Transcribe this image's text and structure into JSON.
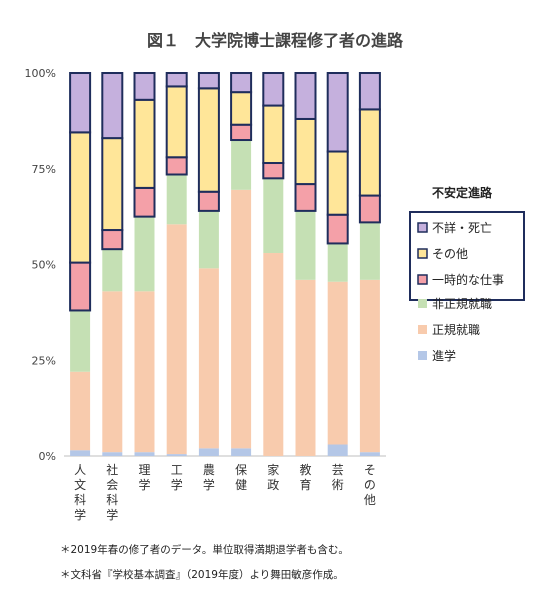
{
  "chart_data": {
    "type": "bar",
    "stacked": true,
    "title": "図１　大学院博士課程修了者の進路",
    "categories": [
      "人文科学",
      "社会科学",
      "理学",
      "工学",
      "農学",
      "保健",
      "家政",
      "教育",
      "芸術",
      "その他"
    ],
    "yticks": [
      "0%",
      "25%",
      "50%",
      "75%",
      "100%"
    ],
    "ylim": [
      0,
      100
    ],
    "series": [
      {
        "name": "進学",
        "color": "#b4c7e7",
        "values": [
          1.5,
          1.0,
          1.0,
          0.5,
          2.0,
          2.0,
          0,
          0,
          3.0,
          1.0
        ]
      },
      {
        "name": "正規就職",
        "color": "#f8cbad",
        "values": [
          20.5,
          42.0,
          42.0,
          60.0,
          47.0,
          67.5,
          53.0,
          46.0,
          42.5,
          45.0
        ]
      },
      {
        "name": "非正規就職",
        "color": "#c5e0b4",
        "values": [
          16.0,
          11.0,
          19.5,
          13.0,
          15.0,
          13.0,
          19.5,
          18.0,
          10.0,
          15.0
        ]
      },
      {
        "name": "一時的な仕事",
        "color": "#f4a0a8",
        "values": [
          12.5,
          5.0,
          7.5,
          4.5,
          5.0,
          4.0,
          4.0,
          7.0,
          7.5,
          7.0
        ]
      },
      {
        "name": "その他",
        "color": "#ffe699",
        "values": [
          34.0,
          24.0,
          23.0,
          18.5,
          27.0,
          8.5,
          15.0,
          17.0,
          16.5,
          22.5
        ]
      },
      {
        "name": "不詳・死亡",
        "color": "#c5b0dd",
        "values": [
          15.5,
          17.0,
          7.0,
          3.5,
          4.0,
          5.0,
          8.5,
          12.0,
          20.5,
          9.5
        ]
      }
    ],
    "unstable_series": [
      "一時的な仕事",
      "その他",
      "不詳・死亡"
    ],
    "legend": {
      "title": "不安定進路",
      "items_unstable": [
        "不詳・死亡",
        "その他",
        "一時的な仕事"
      ],
      "items_stable": [
        "非正規就職",
        "正規就職",
        "進学"
      ],
      "placement": "right"
    },
    "grid": false
  },
  "notes": [
    "＊2019年春の修了者のデータ。単位取得満期退学者も含む。",
    "＊文科省『学校基本調査』（2019年度）より舞田敏彦作成。"
  ],
  "colors": {
    "outline": "#1f2d5c",
    "axis": "#bfbfbf"
  }
}
